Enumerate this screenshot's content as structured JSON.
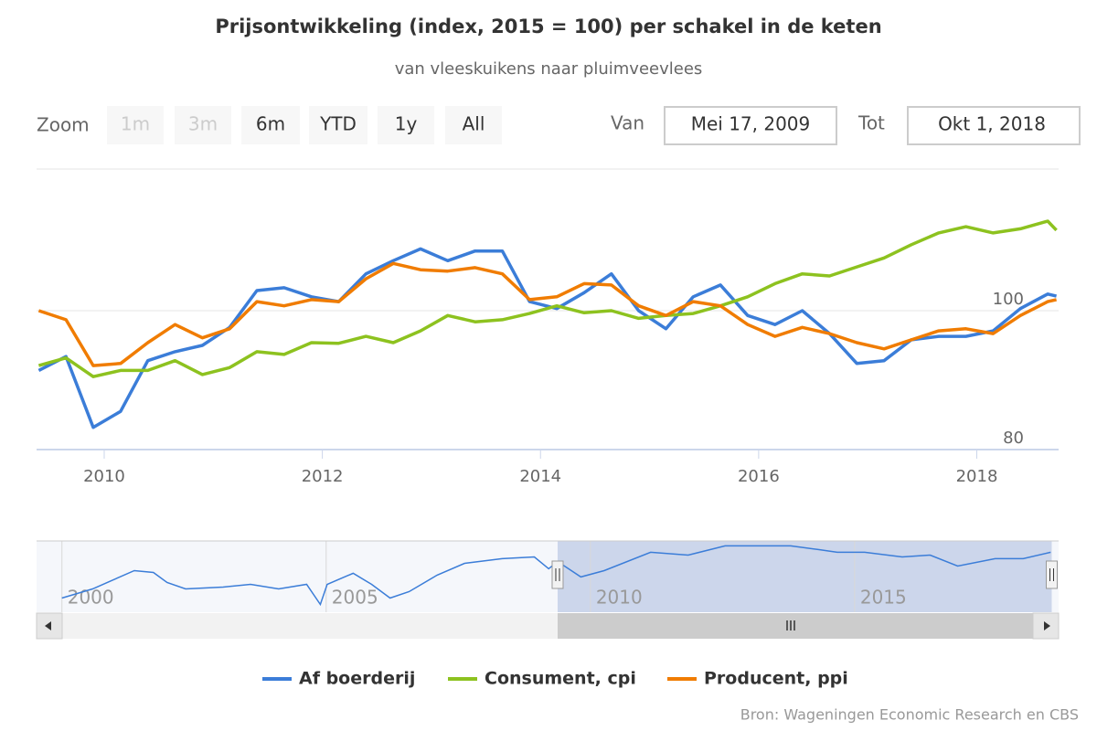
{
  "chart_data": {
    "type": "line",
    "title": "Prijsontwikkeling (index, 2015 = 100) per schakel in de keten",
    "subtitle": "van vleeskuikens naar pluimveevlees",
    "range_selector": {
      "zoom_label": "Zoom",
      "buttons": [
        "1m",
        "3m",
        "6m",
        "YTD",
        "1y",
        "All"
      ],
      "from_label": "Van",
      "from": "Mei 17, 2009",
      "to_label": "Tot",
      "to": "Okt 1, 2018"
    },
    "x": [
      2009.4,
      2009.65,
      2009.9,
      2010.15,
      2010.4,
      2010.65,
      2010.9,
      2011.15,
      2011.4,
      2011.65,
      2011.9,
      2012.15,
      2012.4,
      2012.65,
      2012.9,
      2013.15,
      2013.4,
      2013.65,
      2013.9,
      2014.15,
      2014.4,
      2014.65,
      2014.9,
      2015.15,
      2015.4,
      2015.65,
      2015.9,
      2016.15,
      2016.4,
      2016.65,
      2016.9,
      2017.15,
      2017.4,
      2017.65,
      2017.9,
      2018.15,
      2018.4,
      2018.65,
      2018.73
    ],
    "series": [
      {
        "name": "Af boerderij",
        "color": "#3b7dd8",
        "values": [
          91.4,
          93.4,
          83.2,
          85.5,
          92.8,
          94.1,
          95.0,
          97.6,
          102.9,
          103.3,
          102.0,
          101.3,
          105.3,
          107.2,
          108.9,
          107.2,
          108.6,
          108.6,
          101.3,
          100.3,
          102.6,
          105.3,
          100.0,
          97.4,
          102.0,
          103.7,
          99.3,
          98.0,
          100.0,
          96.7,
          92.4,
          92.8,
          95.8,
          96.3,
          96.3,
          97.1,
          100.3,
          102.4,
          102.1
        ]
      },
      {
        "name": "Consument, cpi",
        "color": "#8dc21f",
        "values": [
          92.1,
          93.2,
          90.5,
          91.4,
          91.4,
          92.8,
          90.8,
          91.8,
          94.1,
          93.7,
          95.4,
          95.3,
          96.3,
          95.4,
          97.1,
          99.3,
          98.4,
          98.7,
          99.6,
          100.7,
          99.7,
          100.0,
          98.9,
          99.3,
          99.6,
          100.7,
          102.0,
          103.9,
          105.3,
          105.0,
          106.3,
          107.6,
          109.5,
          111.2,
          112.1,
          111.2,
          111.8,
          112.9,
          111.6
        ]
      },
      {
        "name": "Producent, ppi",
        "color": "#f07c00",
        "values": [
          100.0,
          98.7,
          92.1,
          92.4,
          95.4,
          98.0,
          96.1,
          97.4,
          101.3,
          100.7,
          101.6,
          101.3,
          104.6,
          106.8,
          105.9,
          105.7,
          106.2,
          105.3,
          101.6,
          102.0,
          103.9,
          103.7,
          100.7,
          99.3,
          101.3,
          100.7,
          98.0,
          96.3,
          97.6,
          96.7,
          95.4,
          94.5,
          95.8,
          97.1,
          97.4,
          96.7,
          99.3,
          101.3,
          101.6
        ]
      }
    ],
    "xlim": [
      2009.38,
      2018.75
    ],
    "xticks": [
      2010,
      2012,
      2014,
      2016,
      2018
    ],
    "ylim": [
      80,
      120.4
    ],
    "yticks": [
      80,
      100
    ],
    "grid": true,
    "navigator": {
      "x": [
        2000.0,
        2000.58,
        2001.37,
        2001.73,
        2001.99,
        2002.34,
        2003.05,
        2003.57,
        2004.1,
        2004.63,
        2004.89,
        2005.02,
        2005.51,
        2005.86,
        2006.21,
        2006.57,
        2007.1,
        2007.62,
        2008.33,
        2008.94,
        2009.21,
        2009.38,
        2009.82,
        2010.26,
        2011.14,
        2011.85,
        2012.55,
        2013.26,
        2013.79,
        2014.31,
        2014.67,
        2015.19,
        2015.9,
        2016.43,
        2016.95,
        2017.66,
        2018.19,
        2018.71
      ],
      "values": [
        65.7,
        73.3,
        88.4,
        86.9,
        78.6,
        73.3,
        74.8,
        77.1,
        73.3,
        77.1,
        60.4,
        77.1,
        86.2,
        77.1,
        65.7,
        71.0,
        84.7,
        94.5,
        98.3,
        99.8,
        90.0,
        96.0,
        83.2,
        88.4,
        103.6,
        101.3,
        108.9,
        108.9,
        108.9,
        105.9,
        103.6,
        103.6,
        99.8,
        101.3,
        92.2,
        98.3,
        98.3,
        103.6
      ],
      "color": "#3b7dd8",
      "xlim": [
        1999.52,
        2018.86
      ],
      "xticks": [
        2000,
        2005,
        2010,
        2015
      ],
      "ylim": [
        54,
        113
      ]
    },
    "credits": "Bron: Wageningen Economic Research en CBS"
  }
}
